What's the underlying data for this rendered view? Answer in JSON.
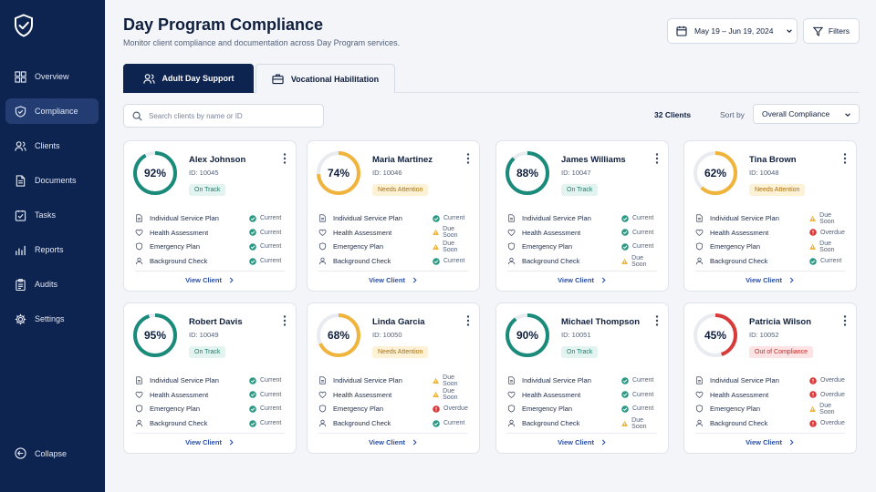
{
  "sidebar": {
    "items": [
      {
        "label": "Overview",
        "icon": "grid-icon",
        "active": false
      },
      {
        "label": "Compliance",
        "icon": "shield-icon",
        "active": true
      },
      {
        "label": "Clients",
        "icon": "users-icon",
        "active": false
      },
      {
        "label": "Documents",
        "icon": "document-icon",
        "active": false
      },
      {
        "label": "Tasks",
        "icon": "checklist-icon",
        "active": false
      },
      {
        "label": "Reports",
        "icon": "bar-chart-icon",
        "active": false
      },
      {
        "label": "Audits",
        "icon": "clipboard-icon",
        "active": false
      },
      {
        "label": "Settings",
        "icon": "gear-icon",
        "active": false
      }
    ],
    "collapse_label": "Collapse"
  },
  "header": {
    "title": "Day Program Compliance",
    "subtitle": "Monitor client compliance and documentation across Day Program services.",
    "date_range": "May 19 – Jun 19, 2024",
    "filters_label": "Filters"
  },
  "tabs": [
    {
      "label": "Adult Day Support",
      "active": true
    },
    {
      "label": "Vocational Habilitation",
      "active": false
    }
  ],
  "toolbar": {
    "search_placeholder": "Search clients by name or ID",
    "client_count": "32 Clients",
    "sort_label": "Sort by",
    "sort_value": "Overall Compliance"
  },
  "colors": {
    "navy": "#0d2350",
    "teal": "#1a8a7a",
    "amber": "#f0b43c",
    "red": "#d93a3a",
    "link": "#2a4fa6"
  },
  "clients": [
    {
      "name": "Alex Johnson",
      "id": "ID: 10045",
      "percent": 92,
      "status": "On Track",
      "tone": "ok",
      "requirements": [
        {
          "label": "Individual Service Plan",
          "status": "Current",
          "level": "ok"
        },
        {
          "label": "Health Assessment",
          "status": "Current",
          "level": "ok"
        },
        {
          "label": "Emergency Plan",
          "status": "Current",
          "level": "ok"
        },
        {
          "label": "Background Check",
          "status": "Current",
          "level": "ok"
        }
      ],
      "link": "View Client"
    },
    {
      "name": "Maria Martinez",
      "id": "ID: 10046",
      "percent": 74,
      "status": "Needs Attention",
      "tone": "warn",
      "requirements": [
        {
          "label": "Individual Service Plan",
          "status": "Current",
          "level": "ok"
        },
        {
          "label": "Health Assessment",
          "status": "Due Soon",
          "level": "warn"
        },
        {
          "label": "Emergency Plan",
          "status": "Due Soon",
          "level": "warn"
        },
        {
          "label": "Background Check",
          "status": "Current",
          "level": "ok"
        }
      ],
      "link": "View Client"
    },
    {
      "name": "James Williams",
      "id": "ID: 10047",
      "percent": 88,
      "status": "On Track",
      "tone": "ok",
      "requirements": [
        {
          "label": "Individual Service Plan",
          "status": "Current",
          "level": "ok"
        },
        {
          "label": "Health Assessment",
          "status": "Current",
          "level": "ok"
        },
        {
          "label": "Emergency Plan",
          "status": "Current",
          "level": "ok"
        },
        {
          "label": "Background Check",
          "status": "Due Soon",
          "level": "warn"
        }
      ],
      "link": "View Client"
    },
    {
      "name": "Tina Brown",
      "id": "ID: 10048",
      "percent": 62,
      "status": "Needs Attention",
      "tone": "warn",
      "requirements": [
        {
          "label": "Individual Service Plan",
          "status": "Due Soon",
          "level": "warn"
        },
        {
          "label": "Health Assessment",
          "status": "Overdue",
          "level": "bad"
        },
        {
          "label": "Emergency Plan",
          "status": "Due Soon",
          "level": "warn"
        },
        {
          "label": "Background Check",
          "status": "Current",
          "level": "ok"
        }
      ],
      "link": "View Client"
    },
    {
      "name": "Robert Davis",
      "id": "ID: 10049",
      "percent": 95,
      "status": "On Track",
      "tone": "ok",
      "requirements": [
        {
          "label": "Individual Service Plan",
          "status": "Current",
          "level": "ok"
        },
        {
          "label": "Health Assessment",
          "status": "Current",
          "level": "ok"
        },
        {
          "label": "Emergency Plan",
          "status": "Current",
          "level": "ok"
        },
        {
          "label": "Background Check",
          "status": "Current",
          "level": "ok"
        }
      ],
      "link": "View Client"
    },
    {
      "name": "Linda Garcia",
      "id": "ID: 10050",
      "percent": 68,
      "status": "Needs Attention",
      "tone": "warn",
      "requirements": [
        {
          "label": "Individual Service Plan",
          "status": "Due Soon",
          "level": "warn"
        },
        {
          "label": "Health Assessment",
          "status": "Due Soon",
          "level": "warn"
        },
        {
          "label": "Emergency Plan",
          "status": "Overdue",
          "level": "bad"
        },
        {
          "label": "Background Check",
          "status": "Current",
          "level": "ok"
        }
      ],
      "link": "View Client"
    },
    {
      "name": "Michael Thompson",
      "id": "ID: 10051",
      "percent": 90,
      "status": "On Track",
      "tone": "ok",
      "requirements": [
        {
          "label": "Individual Service Plan",
          "status": "Current",
          "level": "ok"
        },
        {
          "label": "Health Assessment",
          "status": "Current",
          "level": "ok"
        },
        {
          "label": "Emergency Plan",
          "status": "Current",
          "level": "ok"
        },
        {
          "label": "Background Check",
          "status": "Due Soon",
          "level": "warn"
        }
      ],
      "link": "View Client"
    },
    {
      "name": "Patricia Wilson",
      "id": "ID: 10052",
      "percent": 45,
      "status": "Out of Compliance",
      "tone": "bad",
      "requirements": [
        {
          "label": "Individual Service Plan",
          "status": "Overdue",
          "level": "bad"
        },
        {
          "label": "Health Assessment",
          "status": "Overdue",
          "level": "bad"
        },
        {
          "label": "Emergency Plan",
          "status": "Due Soon",
          "level": "warn"
        },
        {
          "label": "Background Check",
          "status": "Overdue",
          "level": "bad"
        }
      ],
      "link": "View Client"
    }
  ]
}
